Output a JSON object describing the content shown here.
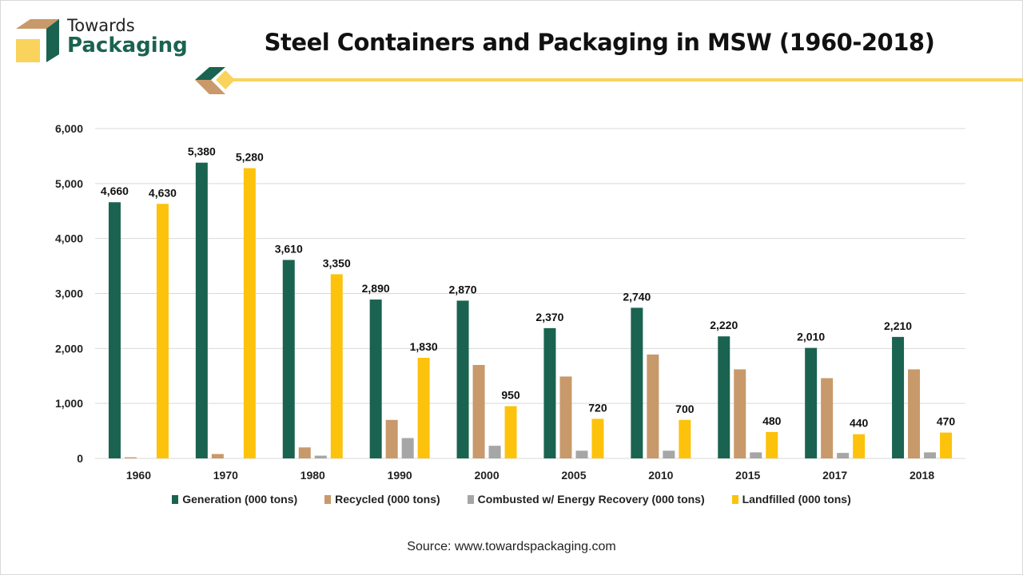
{
  "brand": {
    "line1": "Towards",
    "line2": "Packaging",
    "colors": {
      "green": "#1a6350",
      "tan": "#c8996a",
      "yellow": "#f9d35c"
    }
  },
  "source": "Source: www.towardspackaging.com",
  "chart_data": {
    "type": "bar",
    "title": "Steel Containers and Packaging in MSW (1960-2018)",
    "xlabel": "",
    "ylabel": "",
    "ylim": [
      0,
      6000
    ],
    "yticks": [
      0,
      1000,
      2000,
      3000,
      4000,
      5000,
      6000
    ],
    "ytick_labels": [
      "0",
      "1,000",
      "2,000",
      "3,000",
      "4,000",
      "5,000",
      "6,000"
    ],
    "grid": true,
    "legend_position": "bottom",
    "categories": [
      "1960",
      "1970",
      "1980",
      "1990",
      "2000",
      "2005",
      "2010",
      "2015",
      "2017",
      "2018"
    ],
    "series": [
      {
        "name": "Generation (000 tons)",
        "color": "#1a6350",
        "values": [
          4660,
          5380,
          3610,
          2890,
          2870,
          2370,
          2740,
          2220,
          2010,
          2210
        ],
        "labeled": true
      },
      {
        "name": "Recycled (000 tons)",
        "color": "#c8996a",
        "values": [
          20,
          80,
          200,
          700,
          1700,
          1490,
          1890,
          1620,
          1460,
          1620
        ],
        "labeled": false
      },
      {
        "name": "Combusted w/ Energy Recovery (000 tons)",
        "color": "#a6a6a6",
        "values": [
          0,
          0,
          50,
          370,
          230,
          140,
          140,
          110,
          100,
          110
        ],
        "labeled": false
      },
      {
        "name": "Landfilled (000 tons)",
        "color": "#fdc20b",
        "values": [
          4630,
          5280,
          3350,
          1830,
          950,
          720,
          700,
          480,
          440,
          470
        ],
        "labeled": true
      }
    ]
  }
}
